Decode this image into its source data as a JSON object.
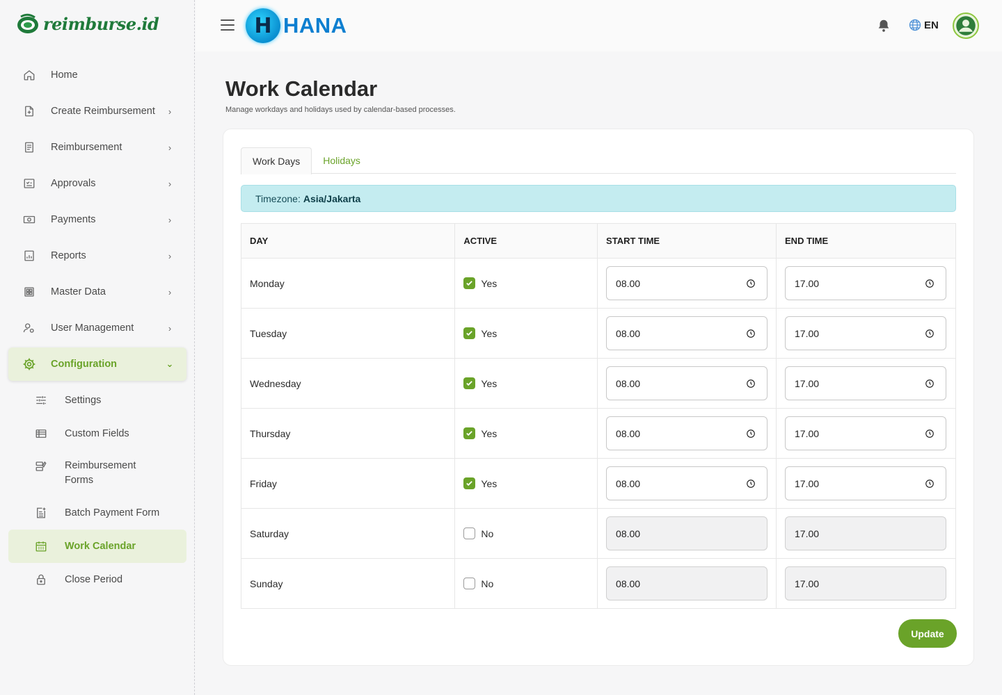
{
  "app": {
    "logo_text": "reimburse.id",
    "brand_letter": "H",
    "brand_name": "HANA"
  },
  "header": {
    "language": "EN",
    "icons": [
      "menu-icon",
      "bell-icon",
      "globe-icon",
      "user-avatar-icon"
    ]
  },
  "sidebar": {
    "items": [
      {
        "label": "Home",
        "icon": "home-icon",
        "has_chevron": false
      },
      {
        "label": "Create Reimbursement",
        "icon": "file-plus-icon",
        "has_chevron": true
      },
      {
        "label": "Reimbursement",
        "icon": "receipt-icon",
        "has_chevron": true
      },
      {
        "label": "Approvals",
        "icon": "checklist-icon",
        "has_chevron": true
      },
      {
        "label": "Payments",
        "icon": "cash-icon",
        "has_chevron": true
      },
      {
        "label": "Reports",
        "icon": "report-icon",
        "has_chevron": true
      },
      {
        "label": "Master Data",
        "icon": "grid-icon",
        "has_chevron": true
      },
      {
        "label": "User Management",
        "icon": "user-gear-icon",
        "has_chevron": true
      },
      {
        "label": "Configuration",
        "icon": "gear-icon",
        "has_chevron": true,
        "expanded": true
      }
    ],
    "sub_items": [
      {
        "label": "Settings",
        "icon": "sliders-icon"
      },
      {
        "label": "Custom Fields",
        "icon": "list-icon"
      },
      {
        "label_line1": "Reimbursement",
        "label_line2": "Forms",
        "icon": "form-edit-icon"
      },
      {
        "label": "Batch Payment Form",
        "icon": "document-plus-icon"
      },
      {
        "label": "Work Calendar",
        "icon": "calendar-icon",
        "selected": true
      },
      {
        "label": "Close Period",
        "icon": "lock-icon"
      }
    ]
  },
  "page": {
    "title": "Work Calendar",
    "subtitle": "Manage workdays and holidays used by calendar-based processes."
  },
  "tabs": [
    {
      "label": "Work Days",
      "active": true
    },
    {
      "label": "Holidays",
      "active": false
    }
  ],
  "timezone": {
    "label": "Timezone:",
    "value": "Asia/Jakarta"
  },
  "table": {
    "headers": [
      "DAY",
      "ACTIVE",
      "START TIME",
      "END TIME"
    ],
    "rows": [
      {
        "day": "Monday",
        "active": true,
        "active_label": "Yes",
        "start": "08.00",
        "end": "17.00"
      },
      {
        "day": "Tuesday",
        "active": true,
        "active_label": "Yes",
        "start": "08.00",
        "end": "17.00"
      },
      {
        "day": "Wednesday",
        "active": true,
        "active_label": "Yes",
        "start": "08.00",
        "end": "17.00"
      },
      {
        "day": "Thursday",
        "active": true,
        "active_label": "Yes",
        "start": "08.00",
        "end": "17.00"
      },
      {
        "day": "Friday",
        "active": true,
        "active_label": "Yes",
        "start": "08.00",
        "end": "17.00"
      },
      {
        "day": "Saturday",
        "active": false,
        "active_label": "No",
        "start": "08.00",
        "end": "17.00"
      },
      {
        "day": "Sunday",
        "active": false,
        "active_label": "No",
        "start": "08.00",
        "end": "17.00"
      }
    ]
  },
  "actions": {
    "update_label": "Update"
  },
  "colors": {
    "accent_green": "#6aa329",
    "active_bg": "#eaf1dc",
    "timezone_bg": "#c4ecf0",
    "brand_blue": "#0d7fd0"
  }
}
